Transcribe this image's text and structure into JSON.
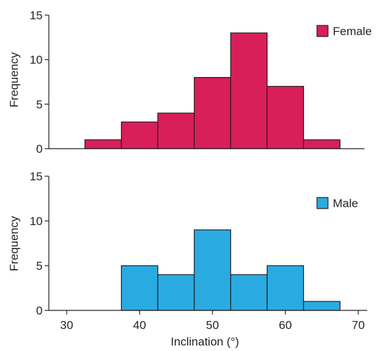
{
  "chart_data": [
    {
      "type": "bar",
      "name": "Female",
      "color": "#d81f5a",
      "bin_edges": [
        32.5,
        37.5,
        42.5,
        47.5,
        52.5,
        57.5,
        62.5,
        67.5
      ],
      "values": [
        1,
        3,
        4,
        8,
        13,
        7,
        1
      ],
      "ylabel": "Frequency",
      "ylim": [
        0,
        15
      ],
      "yticks": [
        0,
        5,
        10,
        15
      ],
      "xlim": [
        28,
        70
      ],
      "legend": {
        "label": "Female",
        "placement": "top-right"
      }
    },
    {
      "type": "bar",
      "name": "Male",
      "color": "#29abe2",
      "bin_edges": [
        37.5,
        42.5,
        47.5,
        52.5,
        57.5,
        62.5,
        67.5
      ],
      "values": [
        5,
        4,
        9,
        4,
        5,
        1
      ],
      "ylabel": "Frequency",
      "ylim": [
        0,
        15
      ],
      "yticks": [
        0,
        5,
        10,
        15
      ],
      "xlim": [
        28,
        70
      ],
      "xticks": [
        30,
        40,
        50,
        60,
        70
      ],
      "xlabel": "Inclination (°)",
      "legend": {
        "label": "Male",
        "placement": "top-right"
      }
    }
  ]
}
